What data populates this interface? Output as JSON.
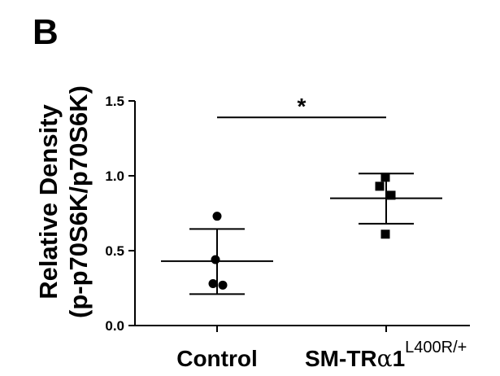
{
  "panel_label": "B",
  "chart_data": {
    "type": "scatter",
    "ylabel_line1": "Relative Density",
    "ylabel_line2": "(p-p70S6K/p70S6K)",
    "ylim": [
      0.0,
      1.5
    ],
    "yticks": [
      "0.0",
      "0.5",
      "1.0",
      "1.5"
    ],
    "ytick_values": [
      0.0,
      0.5,
      1.0,
      1.5
    ],
    "categories": [
      {
        "label": "Control",
        "label_main": "Control",
        "label_greek": "",
        "label_suffix": "",
        "label_sup": ""
      },
      {
        "label": "SM-TRα1L400R/+",
        "label_main": "SM-TR",
        "label_greek": "α",
        "label_suffix": "1",
        "label_sup": "L400R/+"
      }
    ],
    "marker_color": "#000000",
    "series": [
      {
        "category": "Control",
        "marker": "circle",
        "points": [
          0.73,
          0.44,
          0.28,
          0.27
        ],
        "mean": 0.43,
        "sd_upper": 0.645,
        "sd_lower": 0.21
      },
      {
        "category": "SM-TRα1L400R/+",
        "marker": "square",
        "points": [
          0.99,
          0.93,
          0.87,
          0.61
        ],
        "mean": 0.85,
        "sd_upper": 1.015,
        "sd_lower": 0.68
      }
    ],
    "significance": {
      "from": "Control",
      "to": "SM-TRα1L400R/+",
      "y": 1.39,
      "label": "*"
    }
  }
}
